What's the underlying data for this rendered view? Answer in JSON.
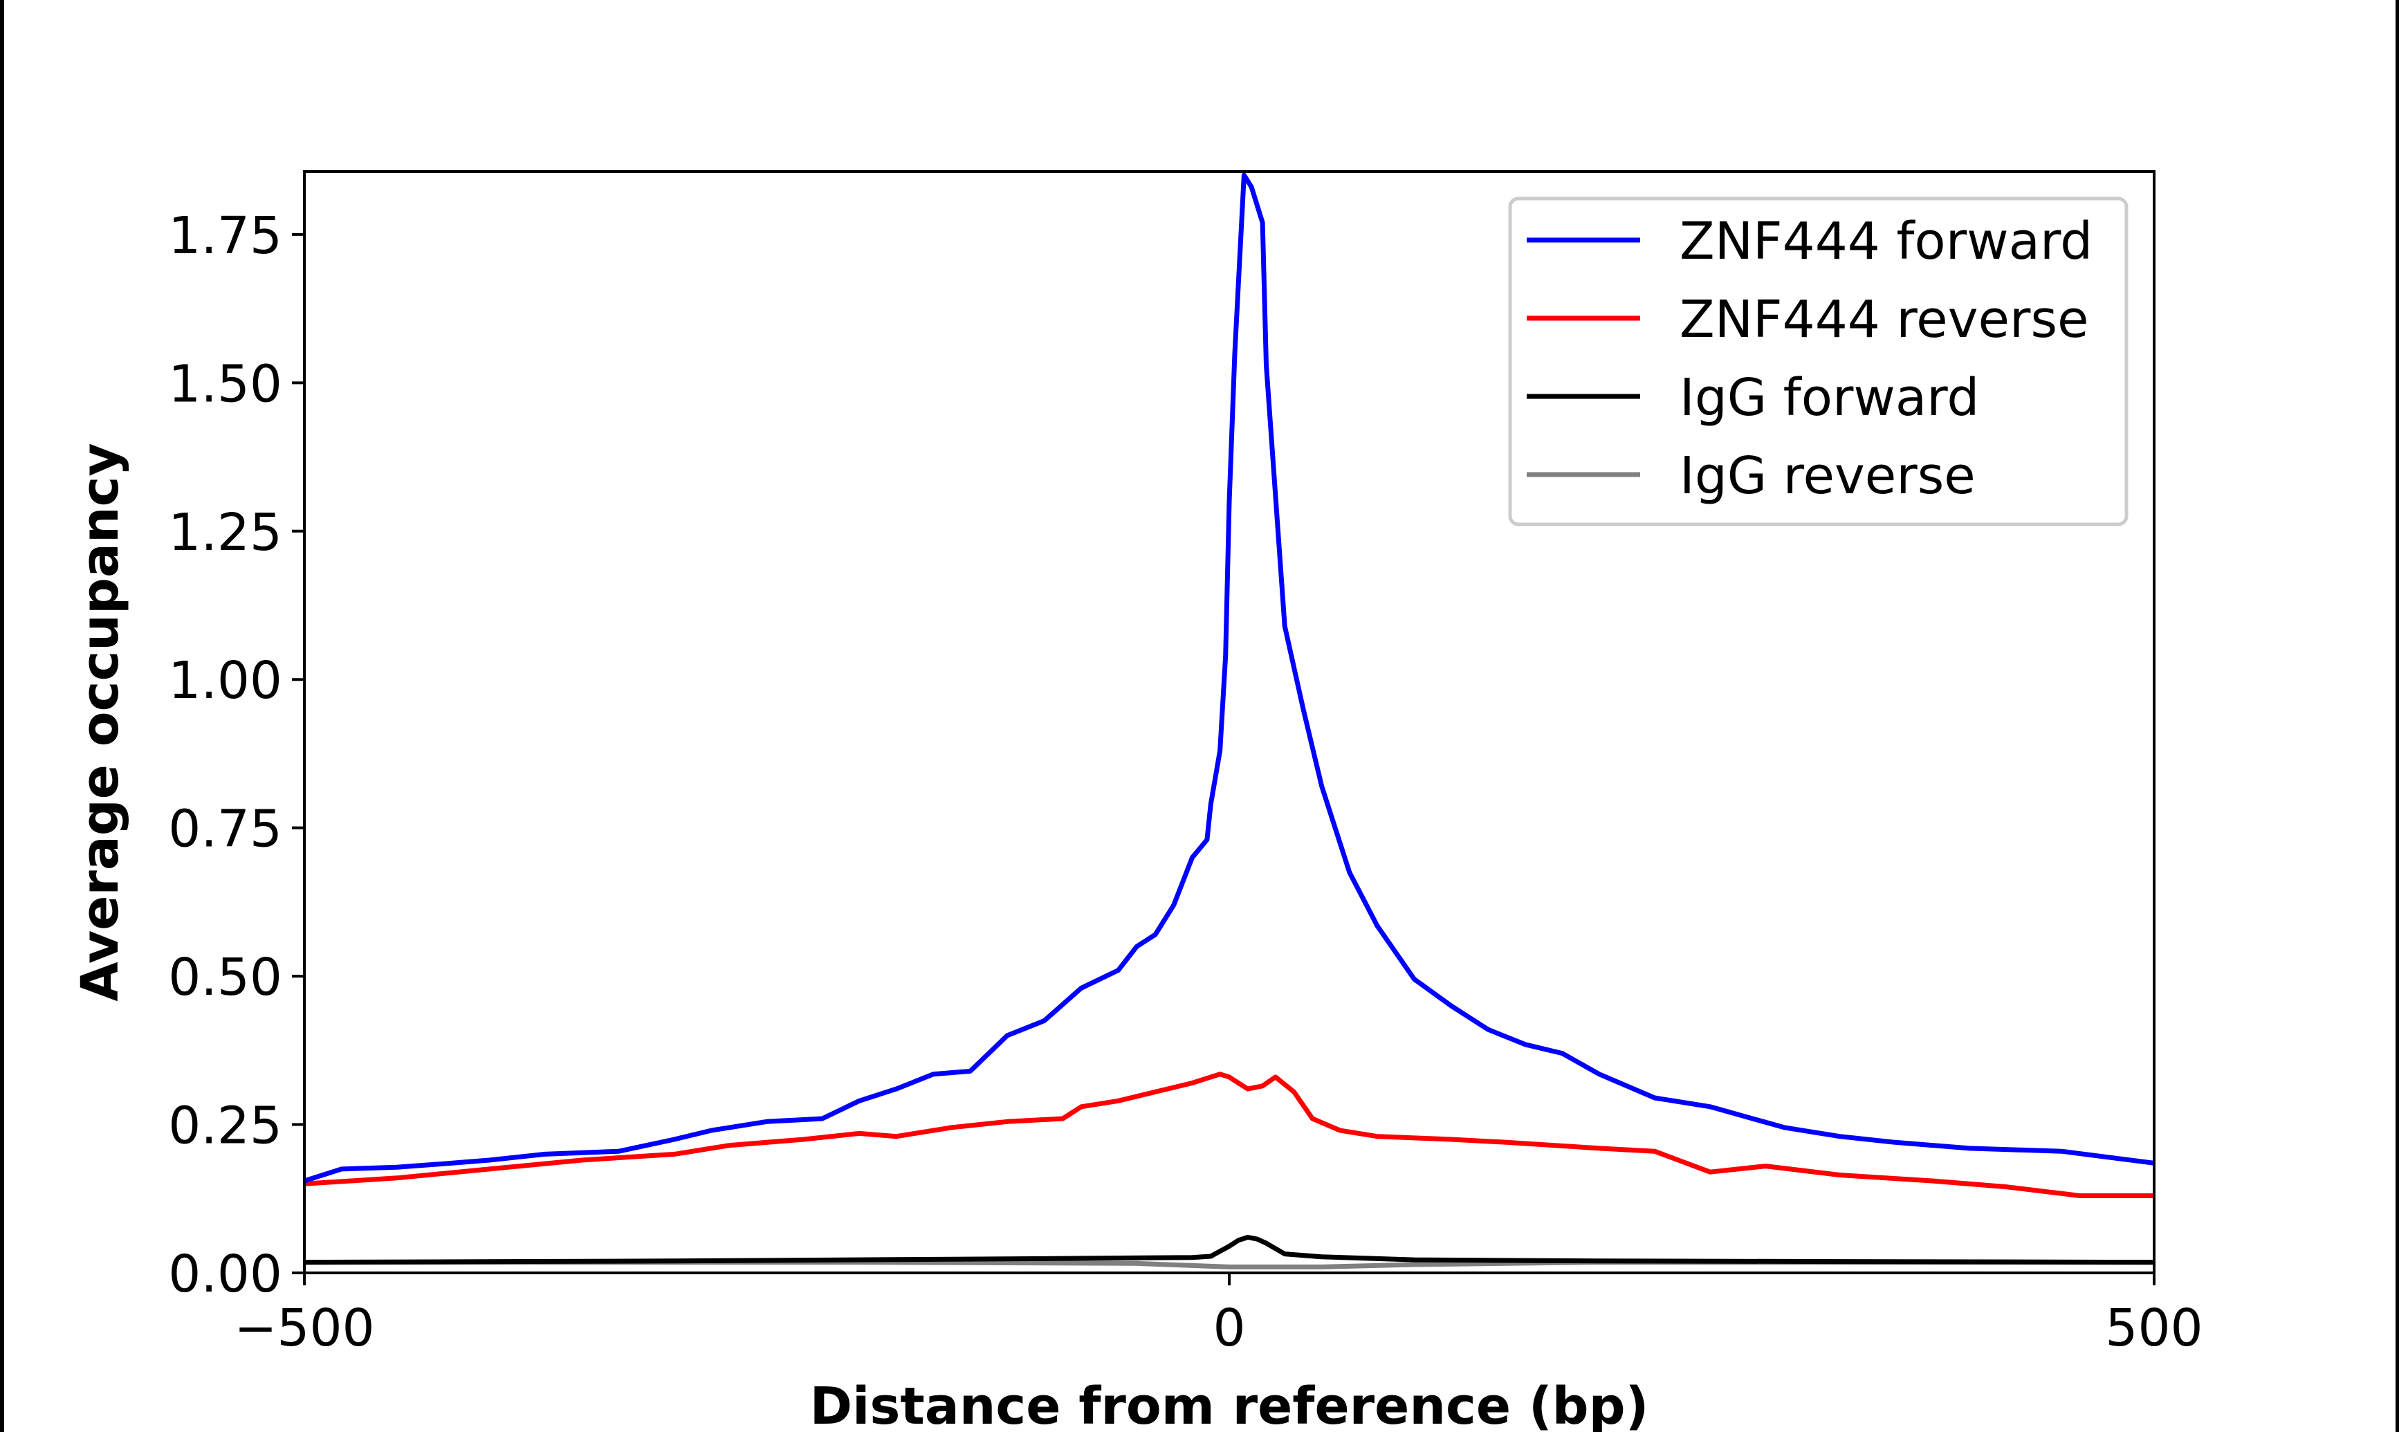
{
  "chart_data": {
    "type": "line",
    "xlabel": "Distance from reference (bp)",
    "ylabel": "Average occupancy",
    "xlim": [
      -500,
      500
    ],
    "ylim": [
      0,
      1.856
    ],
    "xticks": [
      -500,
      0,
      500
    ],
    "xtick_labels": [
      "−500",
      "0",
      "500"
    ],
    "yticks": [
      0,
      0.25,
      0.5,
      0.75,
      1.0,
      1.25,
      1.5,
      1.75
    ],
    "ytick_labels": [
      "0.00",
      "0.25",
      "0.50",
      "0.75",
      "1.00",
      "1.25",
      "1.50",
      "1.75"
    ],
    "grid": false,
    "legend_position": "top-right",
    "series": [
      {
        "name": "ZNF444 forward",
        "color": "#0000ff",
        "x": [
          -500,
          -480,
          -450,
          -420,
          -400,
          -370,
          -330,
          -300,
          -280,
          -250,
          -220,
          -200,
          -180,
          -160,
          -140,
          -120,
          -100,
          -80,
          -60,
          -50,
          -40,
          -30,
          -20,
          -12,
          -10,
          -5,
          -2,
          0,
          3,
          8,
          12,
          18,
          20,
          30,
          40,
          50,
          65,
          80,
          100,
          120,
          140,
          160,
          180,
          200,
          230,
          260,
          300,
          330,
          360,
          400,
          450,
          500
        ],
        "y": [
          0.155,
          0.175,
          0.178,
          0.185,
          0.19,
          0.2,
          0.205,
          0.225,
          0.24,
          0.255,
          0.26,
          0.29,
          0.31,
          0.335,
          0.34,
          0.4,
          0.425,
          0.48,
          0.51,
          0.55,
          0.57,
          0.62,
          0.7,
          0.73,
          0.79,
          0.88,
          1.04,
          1.3,
          1.55,
          1.85,
          1.83,
          1.77,
          1.53,
          1.09,
          0.95,
          0.82,
          0.675,
          0.585,
          0.495,
          0.45,
          0.41,
          0.385,
          0.37,
          0.335,
          0.295,
          0.28,
          0.245,
          0.23,
          0.22,
          0.21,
          0.205,
          0.185
        ]
      },
      {
        "name": "ZNF444 reverse",
        "color": "#ff0000",
        "x": [
          -500,
          -450,
          -400,
          -350,
          -300,
          -270,
          -230,
          -200,
          -180,
          -150,
          -120,
          -90,
          -80,
          -60,
          -40,
          -20,
          -5,
          0,
          10,
          18,
          25,
          35,
          45,
          60,
          80,
          120,
          150,
          200,
          230,
          260,
          290,
          330,
          380,
          420,
          460,
          500
        ],
        "y": [
          0.15,
          0.16,
          0.175,
          0.19,
          0.2,
          0.215,
          0.225,
          0.235,
          0.23,
          0.245,
          0.255,
          0.26,
          0.28,
          0.29,
          0.305,
          0.32,
          0.335,
          0.33,
          0.31,
          0.315,
          0.33,
          0.305,
          0.26,
          0.24,
          0.23,
          0.225,
          0.22,
          0.21,
          0.205,
          0.17,
          0.18,
          0.165,
          0.155,
          0.145,
          0.13,
          0.13
        ]
      },
      {
        "name": "IgG forward",
        "color": "#000000",
        "x": [
          -500,
          -300,
          -100,
          -20,
          -10,
          0,
          5,
          10,
          15,
          20,
          30,
          50,
          100,
          200,
          500
        ],
        "y": [
          0.018,
          0.02,
          0.024,
          0.026,
          0.028,
          0.045,
          0.055,
          0.06,
          0.057,
          0.05,
          0.032,
          0.027,
          0.022,
          0.02,
          0.018
        ]
      },
      {
        "name": "IgG reverse",
        "color": "#808080",
        "x": [
          -500,
          -200,
          -50,
          0,
          50,
          100,
          200,
          500
        ],
        "y": [
          0.018,
          0.018,
          0.016,
          0.01,
          0.01,
          0.014,
          0.018,
          0.018
        ]
      }
    ]
  }
}
